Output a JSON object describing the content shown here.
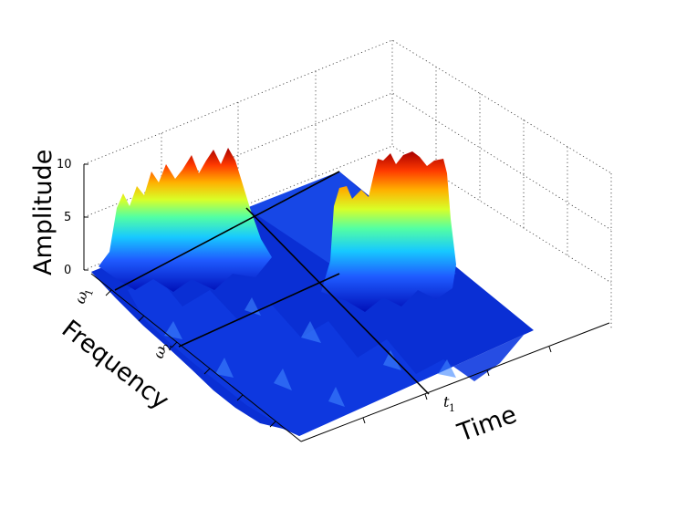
{
  "chart_data": {
    "type": "surface",
    "title": "",
    "zlabel": "Amplitude",
    "ylabel": "Frequency",
    "xlabel": "Time",
    "zlim": [
      0,
      10
    ],
    "z_ticks": [
      "0",
      "5",
      "10"
    ],
    "frequency_markers": [
      {
        "symbol": "ω",
        "sub": "1"
      },
      {
        "symbol": "ω",
        "sub": "2"
      }
    ],
    "time_markers": [
      {
        "symbol": "t",
        "sub": "1"
      }
    ],
    "grid": true,
    "colormap": "jet",
    "peaks": [
      {
        "frequency_band": "ω1",
        "time": "before t1",
        "amplitude": 10
      },
      {
        "frequency_band": "ω2",
        "time": "after t1",
        "amplitude": 10
      }
    ],
    "noise_floor": 1
  }
}
